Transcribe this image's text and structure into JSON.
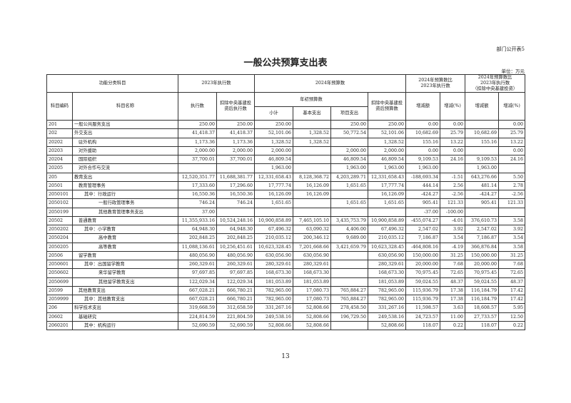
{
  "corner_label": "部门公开表5",
  "title": "一般公共预算支出表",
  "unit": "单位：万元",
  "page_number": "13",
  "header": {
    "category": "功能分类科目",
    "exec2023": "2023年执行数",
    "budget2024": "2024年预算数",
    "compare": "2024年预算数比\n2023年执行数",
    "compare_adj": "2024年预算数比\n2023年执行数\n（扣除中央基建投资）",
    "code": "科目编码",
    "name": "科目名称",
    "exec": "执行数",
    "exec_adj": "扣除中央基建投\n资后执行数",
    "initial": "年初预算数",
    "budget_adj": "扣除中央基建投\n资后预算数",
    "change": "增减额",
    "change_pct": "增减(%)",
    "change2": "增减额",
    "change2_pct": "增减(%)",
    "subtotal": "小计",
    "basic": "基本支出",
    "project": "项目支出"
  },
  "rows": [
    [
      "201",
      "一般公共服务支出",
      "250.00",
      "250.00",
      "250.00",
      "",
      "250.00",
      "250.00",
      "0.00",
      "0.00",
      "",
      "0.00"
    ],
    [
      "202",
      "外交支出",
      "41,418.37",
      "41,418.37",
      "52,101.06",
      "1,328.52",
      "50,772.54",
      "52,101.06",
      "10,682.69",
      "25.79",
      "10,682.69",
      "25.79"
    ],
    [
      "20202",
      "驻外机构",
      "1,173.36",
      "1,173.36",
      "1,328.52",
      "1,328.52",
      "",
      "1,328.52",
      "155.16",
      "13.22",
      "155.16",
      "13.22"
    ],
    [
      "20203",
      "对外援助",
      "2,000.00",
      "2,000.00",
      "2,000.00",
      "",
      "2,000.00",
      "2,000.00",
      "0.00",
      "0.00",
      "",
      "0.00"
    ],
    [
      "20204",
      "国际组织",
      "37,700.01",
      "37,700.01",
      "46,809.54",
      "",
      "46,809.54",
      "46,809.54",
      "9,109.53",
      "24.16",
      "9,109.53",
      "24.16"
    ],
    [
      "20205",
      "对外合作与交流",
      "",
      "",
      "1,963.00",
      "",
      "1,963.00",
      "1,963.00",
      "1,963.00",
      "",
      "1,963.00",
      ""
    ],
    [
      "205",
      "教育支出",
      "12,520,351.77",
      "11,688,381.77",
      "12,331,658.43",
      "8,128,368.72",
      "4,203,289.71",
      "12,331,658.43",
      "-188,693.34",
      "-1.51",
      "643,276.66",
      "5.50"
    ],
    [
      "20501",
      "教育管理事务",
      "17,333.60",
      "17,296.60",
      "17,777.74",
      "16,126.09",
      "1,651.65",
      "17,777.74",
      "444.14",
      "2.56",
      "481.14",
      "2.78"
    ],
    [
      "2050101",
      "其中：行政运行",
      "16,550.36",
      "16,550.36",
      "16,126.09",
      "16,126.09",
      "",
      "16,126.09",
      "-424.27",
      "-2.56",
      "-424.27",
      "-2.56"
    ],
    [
      "2050102",
      "一般行政管理事务",
      "746.24",
      "746.24",
      "1,651.65",
      "",
      "1,651.65",
      "1,651.65",
      "905.41",
      "121.33",
      "905.41",
      "121.33"
    ],
    [
      "2050199",
      "其他教育管理事务支出",
      "37.00",
      "",
      "",
      "",
      "",
      "",
      "-37.00",
      "-100.00",
      "",
      ""
    ],
    [
      "20502",
      "普通教育",
      "11,355,933.16",
      "10,524,248.16",
      "10,900,858.89",
      "7,465,105.10",
      "3,435,753.79",
      "10,900,858.89",
      "-455,074.27",
      "-4.01",
      "376,610.73",
      "3.58"
    ],
    [
      "2050202",
      "其中：小学教育",
      "64,948.30",
      "64,948.30",
      "67,496.32",
      "63,090.32",
      "4,406.00",
      "67,496.32",
      "2,547.02",
      "3.92",
      "2,547.02",
      "3.92"
    ],
    [
      "2050204",
      "高中教育",
      "202,848.25",
      "202,848.25",
      "210,035.12",
      "200,346.12",
      "9,689.00",
      "210,035.12",
      "7,186.87",
      "3.54",
      "7,186.87",
      "3.54"
    ],
    [
      "2050205",
      "高等教育",
      "11,088,136.61",
      "10,256,451.61",
      "10,623,328.45",
      "7,201,668.66",
      "3,421,659.79",
      "10,623,328.45",
      "-464,808.16",
      "-4.19",
      "366,876.84",
      "3.58"
    ],
    [
      "20506",
      "留学教育",
      "480,056.90",
      "480,056.90",
      "630,056.90",
      "630,056.90",
      "",
      "630,056.90",
      "150,000.00",
      "31.25",
      "150,000.00",
      "31.25"
    ],
    [
      "2050601",
      "其中：出国留学教育",
      "260,329.61",
      "260,329.61",
      "280,329.61",
      "280,329.61",
      "",
      "280,329.61",
      "20,000.00",
      "7.68",
      "20,000.00",
      "7.68"
    ],
    [
      "2050602",
      "来华留学教育",
      "97,697.85",
      "97,697.85",
      "168,673.30",
      "168,673.30",
      "",
      "168,673.30",
      "70,975.45",
      "72.65",
      "70,975.45",
      "72.65"
    ],
    [
      "2050699",
      "其他留学教育支出",
      "122,029.34",
      "122,029.34",
      "181,053.89",
      "181,053.89",
      "",
      "181,053.89",
      "59,024.55",
      "48.37",
      "59,024.55",
      "48.37"
    ],
    [
      "20599",
      "其他教育支出",
      "667,028.21",
      "666,780.21",
      "782,965.00",
      "17,080.73",
      "765,884.27",
      "782,965.00",
      "115,936.79",
      "17.38",
      "116,184.79",
      "17.42"
    ],
    [
      "2059999",
      "其中：其他教育支出",
      "667,028.21",
      "666,780.21",
      "782,965.00",
      "17,080.73",
      "765,884.27",
      "782,965.00",
      "115,936.79",
      "17.38",
      "116,184.79",
      "17.42"
    ],
    [
      "206",
      "科学技术支出",
      "319,668.59",
      "312,658.59",
      "331,267.16",
      "52,808.66",
      "278,458.50",
      "331,267.16",
      "11,598.57",
      "3.63",
      "18,608.57",
      "5.95"
    ],
    [
      "20602",
      "基础研究",
      "224,814.59",
      "221,804.59",
      "249,538.16",
      "52,808.66",
      "196,729.50",
      "249,538.16",
      "24,723.57",
      "11.00",
      "27,733.57",
      "12.50"
    ],
    [
      "2060201",
      "其中：机构运行",
      "52,690.59",
      "52,690.59",
      "52,808.66",
      "52,808.66",
      "",
      "52,808.66",
      "118.07",
      "0.22",
      "118.07",
      "0.22"
    ]
  ]
}
